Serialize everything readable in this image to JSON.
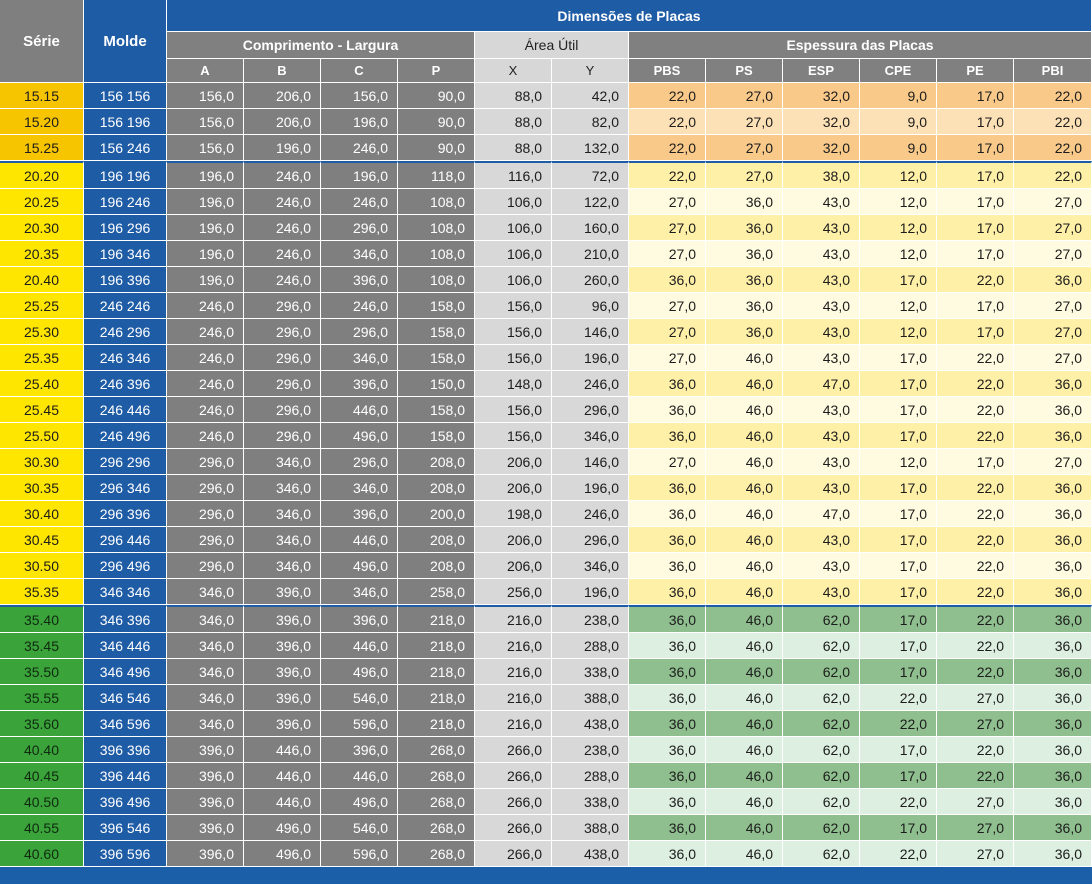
{
  "header": {
    "serie": "Série",
    "molde": "Molde",
    "dimensoes": "Dimensões de Placas",
    "comprimento_largura": "Comprimento - Largura",
    "area_util": "Área Útil",
    "espessura": "Espessura das Placas",
    "cols_comp": [
      "A",
      "B",
      "C",
      "P"
    ],
    "cols_area": [
      "X",
      "Y"
    ],
    "cols_esp": [
      "PBS",
      "PS",
      "ESP",
      "CPE",
      "PE",
      "PBI"
    ]
  },
  "colors": {
    "orange_group": "#f7c400",
    "yellow_group": "#ffe600",
    "green_group": "#3aa33a",
    "molde_blue": "#1f5ca6",
    "dim_gray": "#7f7f7f"
  },
  "rows": [
    {
      "group": "orange",
      "serie": "15.15",
      "molde": "156 156",
      "A": "156,0",
      "B": "206,0",
      "C": "156,0",
      "P": "90,0",
      "X": "88,0",
      "Y": "42,0",
      "PBS": "22,0",
      "PS": "27,0",
      "ESP": "32,0",
      "CPE": "9,0",
      "PE": "17,0",
      "PBI": "22,0"
    },
    {
      "group": "orange",
      "serie": "15.20",
      "molde": "156 196",
      "A": "156,0",
      "B": "206,0",
      "C": "196,0",
      "P": "90,0",
      "X": "88,0",
      "Y": "82,0",
      "PBS": "22,0",
      "PS": "27,0",
      "ESP": "32,0",
      "CPE": "9,0",
      "PE": "17,0",
      "PBI": "22,0"
    },
    {
      "group": "orange",
      "serie": "15.25",
      "molde": "156 246",
      "A": "156,0",
      "B": "196,0",
      "C": "246,0",
      "P": "90,0",
      "X": "88,0",
      "Y": "132,0",
      "PBS": "22,0",
      "PS": "27,0",
      "ESP": "32,0",
      "CPE": "9,0",
      "PE": "17,0",
      "PBI": "22,0"
    },
    {
      "group": "yellow",
      "serie": "20.20",
      "molde": "196 196",
      "A": "196,0",
      "B": "246,0",
      "C": "196,0",
      "P": "118,0",
      "X": "116,0",
      "Y": "72,0",
      "PBS": "22,0",
      "PS": "27,0",
      "ESP": "38,0",
      "CPE": "12,0",
      "PE": "17,0",
      "PBI": "22,0"
    },
    {
      "group": "yellow",
      "serie": "20.25",
      "molde": "196 246",
      "A": "196,0",
      "B": "246,0",
      "C": "246,0",
      "P": "108,0",
      "X": "106,0",
      "Y": "122,0",
      "PBS": "27,0",
      "PS": "36,0",
      "ESP": "43,0",
      "CPE": "12,0",
      "PE": "17,0",
      "PBI": "27,0"
    },
    {
      "group": "yellow",
      "serie": "20.30",
      "molde": "196 296",
      "A": "196,0",
      "B": "246,0",
      "C": "296,0",
      "P": "108,0",
      "X": "106,0",
      "Y": "160,0",
      "PBS": "27,0",
      "PS": "36,0",
      "ESP": "43,0",
      "CPE": "12,0",
      "PE": "17,0",
      "PBI": "27,0"
    },
    {
      "group": "yellow",
      "serie": "20.35",
      "molde": "196 346",
      "A": "196,0",
      "B": "246,0",
      "C": "346,0",
      "P": "108,0",
      "X": "106,0",
      "Y": "210,0",
      "PBS": "27,0",
      "PS": "36,0",
      "ESP": "43,0",
      "CPE": "12,0",
      "PE": "17,0",
      "PBI": "27,0"
    },
    {
      "group": "yellow",
      "serie": "20.40",
      "molde": "196 396",
      "A": "196,0",
      "B": "246,0",
      "C": "396,0",
      "P": "108,0",
      "X": "106,0",
      "Y": "260,0",
      "PBS": "36,0",
      "PS": "36,0",
      "ESP": "43,0",
      "CPE": "17,0",
      "PE": "22,0",
      "PBI": "36,0"
    },
    {
      "group": "yellow",
      "serie": "25.25",
      "molde": "246 246",
      "A": "246,0",
      "B": "296,0",
      "C": "246,0",
      "P": "158,0",
      "X": "156,0",
      "Y": "96,0",
      "PBS": "27,0",
      "PS": "36,0",
      "ESP": "43,0",
      "CPE": "12,0",
      "PE": "17,0",
      "PBI": "27,0"
    },
    {
      "group": "yellow",
      "serie": "25.30",
      "molde": "246 296",
      "A": "246,0",
      "B": "296,0",
      "C": "296,0",
      "P": "158,0",
      "X": "156,0",
      "Y": "146,0",
      "PBS": "27,0",
      "PS": "36,0",
      "ESP": "43,0",
      "CPE": "12,0",
      "PE": "17,0",
      "PBI": "27,0"
    },
    {
      "group": "yellow",
      "serie": "25.35",
      "molde": "246 346",
      "A": "246,0",
      "B": "296,0",
      "C": "346,0",
      "P": "158,0",
      "X": "156,0",
      "Y": "196,0",
      "PBS": "27,0",
      "PS": "46,0",
      "ESP": "43,0",
      "CPE": "17,0",
      "PE": "22,0",
      "PBI": "27,0"
    },
    {
      "group": "yellow",
      "serie": "25.40",
      "molde": "246 396",
      "A": "246,0",
      "B": "296,0",
      "C": "396,0",
      "P": "150,0",
      "X": "148,0",
      "Y": "246,0",
      "PBS": "36,0",
      "PS": "46,0",
      "ESP": "47,0",
      "CPE": "17,0",
      "PE": "22,0",
      "PBI": "36,0"
    },
    {
      "group": "yellow",
      "serie": "25.45",
      "molde": "246 446",
      "A": "246,0",
      "B": "296,0",
      "C": "446,0",
      "P": "158,0",
      "X": "156,0",
      "Y": "296,0",
      "PBS": "36,0",
      "PS": "46,0",
      "ESP": "43,0",
      "CPE": "17,0",
      "PE": "22,0",
      "PBI": "36,0"
    },
    {
      "group": "yellow",
      "serie": "25.50",
      "molde": "246 496",
      "A": "246,0",
      "B": "296,0",
      "C": "496,0",
      "P": "158,0",
      "X": "156,0",
      "Y": "346,0",
      "PBS": "36,0",
      "PS": "46,0",
      "ESP": "43,0",
      "CPE": "17,0",
      "PE": "22,0",
      "PBI": "36,0"
    },
    {
      "group": "yellow",
      "serie": "30.30",
      "molde": "296 296",
      "A": "296,0",
      "B": "346,0",
      "C": "296,0",
      "P": "208,0",
      "X": "206,0",
      "Y": "146,0",
      "PBS": "27,0",
      "PS": "46,0",
      "ESP": "43,0",
      "CPE": "12,0",
      "PE": "17,0",
      "PBI": "27,0"
    },
    {
      "group": "yellow",
      "serie": "30.35",
      "molde": "296 346",
      "A": "296,0",
      "B": "346,0",
      "C": "346,0",
      "P": "208,0",
      "X": "206,0",
      "Y": "196,0",
      "PBS": "36,0",
      "PS": "46,0",
      "ESP": "43,0",
      "CPE": "17,0",
      "PE": "22,0",
      "PBI": "36,0"
    },
    {
      "group": "yellow",
      "serie": "30.40",
      "molde": "296 396",
      "A": "296,0",
      "B": "346,0",
      "C": "396,0",
      "P": "200,0",
      "X": "198,0",
      "Y": "246,0",
      "PBS": "36,0",
      "PS": "46,0",
      "ESP": "47,0",
      "CPE": "17,0",
      "PE": "22,0",
      "PBI": "36,0"
    },
    {
      "group": "yellow",
      "serie": "30.45",
      "molde": "296 446",
      "A": "296,0",
      "B": "346,0",
      "C": "446,0",
      "P": "208,0",
      "X": "206,0",
      "Y": "296,0",
      "PBS": "36,0",
      "PS": "46,0",
      "ESP": "43,0",
      "CPE": "17,0",
      "PE": "22,0",
      "PBI": "36,0"
    },
    {
      "group": "yellow",
      "serie": "30.50",
      "molde": "296 496",
      "A": "296,0",
      "B": "346,0",
      "C": "496,0",
      "P": "208,0",
      "X": "206,0",
      "Y": "346,0",
      "PBS": "36,0",
      "PS": "46,0",
      "ESP": "43,0",
      "CPE": "17,0",
      "PE": "22,0",
      "PBI": "36,0"
    },
    {
      "group": "yellow",
      "serie": "35.35",
      "molde": "346 346",
      "A": "346,0",
      "B": "396,0",
      "C": "346,0",
      "P": "258,0",
      "X": "256,0",
      "Y": "196,0",
      "PBS": "36,0",
      "PS": "46,0",
      "ESP": "43,0",
      "CPE": "17,0",
      "PE": "22,0",
      "PBI": "36,0"
    },
    {
      "group": "green",
      "serie": "35.40",
      "molde": "346 396",
      "A": "346,0",
      "B": "396,0",
      "C": "396,0",
      "P": "218,0",
      "X": "216,0",
      "Y": "238,0",
      "PBS": "36,0",
      "PS": "46,0",
      "ESP": "62,0",
      "CPE": "17,0",
      "PE": "22,0",
      "PBI": "36,0"
    },
    {
      "group": "green",
      "serie": "35.45",
      "molde": "346 446",
      "A": "346,0",
      "B": "396,0",
      "C": "446,0",
      "P": "218,0",
      "X": "216,0",
      "Y": "288,0",
      "PBS": "36,0",
      "PS": "46,0",
      "ESP": "62,0",
      "CPE": "17,0",
      "PE": "22,0",
      "PBI": "36,0"
    },
    {
      "group": "green",
      "serie": "35.50",
      "molde": "346 496",
      "A": "346,0",
      "B": "396,0",
      "C": "496,0",
      "P": "218,0",
      "X": "216,0",
      "Y": "338,0",
      "PBS": "36,0",
      "PS": "46,0",
      "ESP": "62,0",
      "CPE": "17,0",
      "PE": "22,0",
      "PBI": "36,0"
    },
    {
      "group": "green",
      "serie": "35.55",
      "molde": "346 546",
      "A": "346,0",
      "B": "396,0",
      "C": "546,0",
      "P": "218,0",
      "X": "216,0",
      "Y": "388,0",
      "PBS": "36,0",
      "PS": "46,0",
      "ESP": "62,0",
      "CPE": "22,0",
      "PE": "27,0",
      "PBI": "36,0"
    },
    {
      "group": "green",
      "serie": "35.60",
      "molde": "346 596",
      "A": "346,0",
      "B": "396,0",
      "C": "596,0",
      "P": "218,0",
      "X": "216,0",
      "Y": "438,0",
      "PBS": "36,0",
      "PS": "46,0",
      "ESP": "62,0",
      "CPE": "22,0",
      "PE": "27,0",
      "PBI": "36,0"
    },
    {
      "group": "green",
      "serie": "40.40",
      "molde": "396 396",
      "A": "396,0",
      "B": "446,0",
      "C": "396,0",
      "P": "268,0",
      "X": "266,0",
      "Y": "238,0",
      "PBS": "36,0",
      "PS": "46,0",
      "ESP": "62,0",
      "CPE": "17,0",
      "PE": "22,0",
      "PBI": "36,0"
    },
    {
      "group": "green",
      "serie": "40.45",
      "molde": "396 446",
      "A": "396,0",
      "B": "446,0",
      "C": "446,0",
      "P": "268,0",
      "X": "266,0",
      "Y": "288,0",
      "PBS": "36,0",
      "PS": "46,0",
      "ESP": "62,0",
      "CPE": "17,0",
      "PE": "22,0",
      "PBI": "36,0"
    },
    {
      "group": "green",
      "serie": "40.50",
      "molde": "396 496",
      "A": "396,0",
      "B": "446,0",
      "C": "496,0",
      "P": "268,0",
      "X": "266,0",
      "Y": "338,0",
      "PBS": "36,0",
      "PS": "46,0",
      "ESP": "62,0",
      "CPE": "22,0",
      "PE": "27,0",
      "PBI": "36,0"
    },
    {
      "group": "green",
      "serie": "40.55",
      "molde": "396 546",
      "A": "396,0",
      "B": "496,0",
      "C": "546,0",
      "P": "268,0",
      "X": "266,0",
      "Y": "388,0",
      "PBS": "36,0",
      "PS": "46,0",
      "ESP": "62,0",
      "CPE": "17,0",
      "PE": "27,0",
      "PBI": "36,0"
    },
    {
      "group": "green",
      "serie": "40.60",
      "molde": "396 596",
      "A": "396,0",
      "B": "496,0",
      "C": "596,0",
      "P": "268,0",
      "X": "266,0",
      "Y": "438,0",
      "PBS": "36,0",
      "PS": "46,0",
      "ESP": "62,0",
      "CPE": "22,0",
      "PE": "27,0",
      "PBI": "36,0"
    }
  ]
}
